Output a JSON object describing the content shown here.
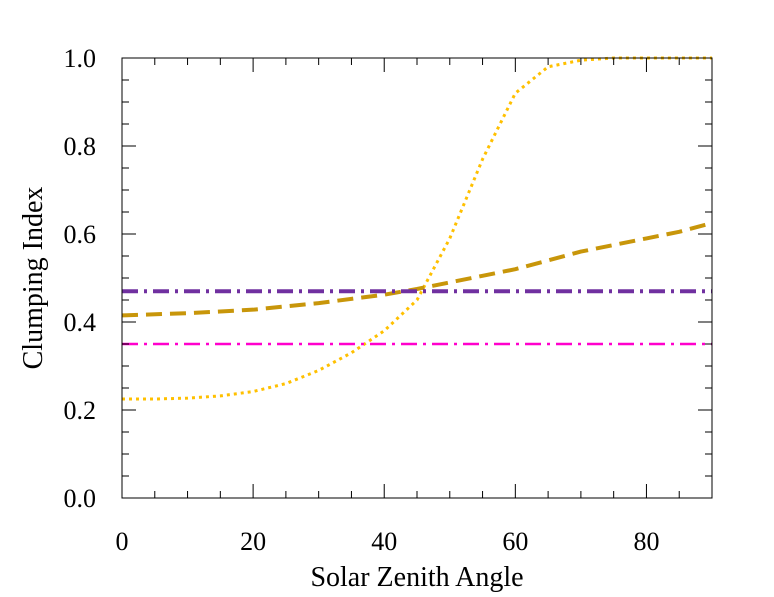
{
  "chart_data": {
    "type": "line",
    "xlabel": "Solar Zenith Angle",
    "ylabel": "Clumping Index",
    "xlim": [
      0,
      90
    ],
    "ylim": [
      0,
      1.0
    ],
    "xticks": [
      0,
      20,
      40,
      60,
      80
    ],
    "xtick_labels": [
      "0",
      "20",
      "40",
      "60",
      "80"
    ],
    "yticks": [
      0,
      0.2,
      0.4,
      0.6,
      0.8,
      1.0
    ],
    "ytick_labels": [
      "0.0",
      "0.2",
      "0.4",
      "0.6",
      "0.8",
      "1.0"
    ],
    "grid": false,
    "legend": "none",
    "series": [
      {
        "style": "dotted",
        "color": "#ffc000",
        "x": [
          0,
          5,
          10,
          15,
          20,
          25,
          30,
          35,
          40,
          45,
          50,
          55,
          60,
          65,
          70,
          75,
          80,
          85,
          90
        ],
        "y": [
          0.225,
          0.225,
          0.227,
          0.232,
          0.242,
          0.26,
          0.29,
          0.33,
          0.38,
          0.45,
          0.59,
          0.77,
          0.92,
          0.98,
          0.995,
          1.0,
          1.0,
          1.0,
          1.0
        ]
      },
      {
        "style": "dashed",
        "color": "#c8960a",
        "x": [
          0,
          10,
          20,
          30,
          40,
          45,
          50,
          55,
          60,
          65,
          70,
          75,
          80,
          85,
          90
        ],
        "y": [
          0.415,
          0.42,
          0.428,
          0.443,
          0.462,
          0.475,
          0.49,
          0.505,
          0.52,
          0.54,
          0.56,
          0.575,
          0.59,
          0.605,
          0.625
        ]
      },
      {
        "style": "dash-dot",
        "color": "#7030a0",
        "x": [
          0,
          90
        ],
        "y": [
          0.47,
          0.47
        ]
      },
      {
        "style": "dash-dot",
        "color": "#ff00cc",
        "x": [
          0,
          90
        ],
        "y": [
          0.35,
          0.35
        ]
      }
    ]
  }
}
